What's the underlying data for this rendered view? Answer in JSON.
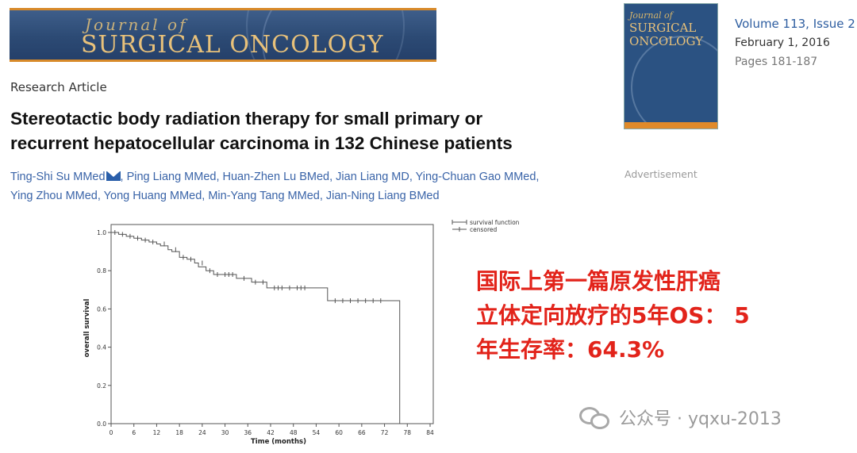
{
  "journal": {
    "banner_line1": "Journal of",
    "banner_line2": "SURGICAL ONCOLOGY",
    "cover_line1": "Journal of",
    "cover_line2": "SURGICAL",
    "cover_line3": "ONCOLOGY",
    "volume": "Volume 113, Issue 2",
    "date": "February 1, 2016",
    "pages": "Pages 181-187"
  },
  "article": {
    "type": "Research Article",
    "title_line1": "Stereotactic body radiation therapy for small primary or",
    "title_line2": "recurrent hepatocellular carcinoma in 132 Chinese patients",
    "authors_line1_a": "Ting-Shi Su MMed",
    "authors_line1_b": ", Ping Liang MMed, Huan-Zhen Lu BMed, Jian Liang MD, Ying-Chuan Gao MMed,",
    "authors_line2": "Ying Zhou MMed, Yong Huang MMed, Min-Yang Tang MMed, Jian-Ning Liang BMed"
  },
  "advertisement": "Advertisement",
  "annotation": {
    "line1": "国际上第一篇原发性肝癌",
    "line2": "立体定向放疗的5年OS： 5",
    "line3": "年生存率：64.3%"
  },
  "watermark": "公众号 · yqxu-2013",
  "colors": {
    "accent_red": "#e2231a",
    "link_blue": "#3a64a8",
    "banner_blue": "#2c4a74"
  },
  "chart_data": {
    "type": "line",
    "xlabel": "Time  (months)",
    "ylabel": "overall survival",
    "xlim": [
      0,
      84
    ],
    "ylim": [
      0,
      1.0
    ],
    "x_ticks": [
      "0",
      "6",
      "12",
      "18",
      "24",
      "30",
      "36",
      "42",
      "48",
      "54",
      "60",
      "66",
      "72",
      "78",
      "84"
    ],
    "y_ticks": [
      "0.0",
      "0.2",
      "0.4",
      "0.6",
      "0.8",
      "1.0"
    ],
    "legend": [
      "survival function",
      "censored"
    ],
    "legend_position": "top-right",
    "series": [
      {
        "name": "survival function",
        "x": [
          0,
          2,
          4,
          6,
          8,
          10,
          12,
          13,
          15,
          16,
          18,
          20,
          22,
          23,
          25,
          27,
          29,
          33,
          37,
          41,
          52,
          57,
          76,
          76
        ],
        "y": [
          1.0,
          0.99,
          0.98,
          0.97,
          0.96,
          0.95,
          0.94,
          0.93,
          0.91,
          0.9,
          0.87,
          0.86,
          0.84,
          0.82,
          0.8,
          0.78,
          0.78,
          0.76,
          0.74,
          0.71,
          0.71,
          0.643,
          0.643,
          0.0
        ]
      }
    ],
    "censored": {
      "x": [
        1,
        3,
        5,
        7,
        9,
        11,
        14,
        17,
        19,
        21,
        24,
        26,
        28,
        30,
        31,
        32,
        35,
        38,
        40,
        43,
        44,
        45,
        47,
        49,
        50,
        51,
        59,
        61,
        63,
        65,
        67,
        69,
        71
      ],
      "y": [
        1.0,
        0.99,
        0.98,
        0.97,
        0.96,
        0.95,
        0.94,
        0.91,
        0.87,
        0.86,
        0.84,
        0.8,
        0.78,
        0.78,
        0.78,
        0.78,
        0.76,
        0.74,
        0.74,
        0.71,
        0.71,
        0.71,
        0.71,
        0.71,
        0.71,
        0.71,
        0.643,
        0.643,
        0.643,
        0.643,
        0.643,
        0.643,
        0.643
      ]
    }
  }
}
